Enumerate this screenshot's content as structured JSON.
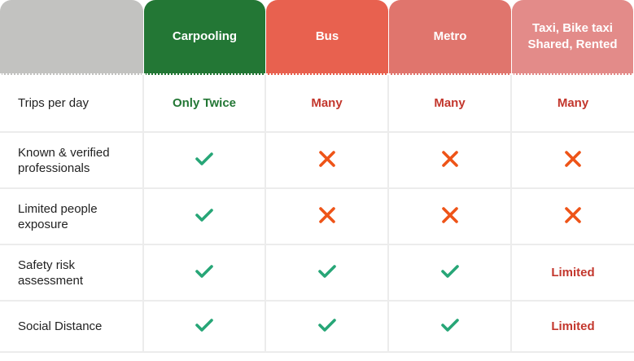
{
  "colors": {
    "blank": "#c2c2c0",
    "carpooling": "#237735",
    "bus": "#e8614f",
    "metro": "#e0756d",
    "taxi": "#e38b89",
    "check": "#27a677",
    "cross": "#ee5418"
  },
  "headers": [
    "",
    "Carpooling",
    "Bus",
    "Metro",
    "Taxi, Bike taxi Shared, Rented"
  ],
  "rows": [
    {
      "label": "Trips per day",
      "cells": [
        {
          "type": "text",
          "value": "Only Twice"
        },
        {
          "type": "text",
          "value": "Many"
        },
        {
          "type": "text",
          "value": "Many"
        },
        {
          "type": "text",
          "value": "Many"
        }
      ]
    },
    {
      "label": "Known & verified professionals",
      "cells": [
        {
          "type": "icon",
          "value": "check-icon"
        },
        {
          "type": "icon",
          "value": "cross-icon"
        },
        {
          "type": "icon",
          "value": "cross-icon"
        },
        {
          "type": "icon",
          "value": "cross-icon"
        }
      ]
    },
    {
      "label": "Limited people exposure",
      "cells": [
        {
          "type": "icon",
          "value": "check-icon"
        },
        {
          "type": "icon",
          "value": "cross-icon"
        },
        {
          "type": "icon",
          "value": "cross-icon"
        },
        {
          "type": "icon",
          "value": "cross-icon"
        }
      ]
    },
    {
      "label": "Safety risk assessment",
      "cells": [
        {
          "type": "icon",
          "value": "check-icon"
        },
        {
          "type": "icon",
          "value": "check-icon"
        },
        {
          "type": "icon",
          "value": "check-icon"
        },
        {
          "type": "text",
          "value": "Limited"
        }
      ]
    },
    {
      "label": "Social Distance",
      "cells": [
        {
          "type": "icon",
          "value": "check-icon"
        },
        {
          "type": "icon",
          "value": "check-icon"
        },
        {
          "type": "icon",
          "value": "check-icon"
        },
        {
          "type": "text",
          "value": "Limited"
        }
      ]
    }
  ]
}
